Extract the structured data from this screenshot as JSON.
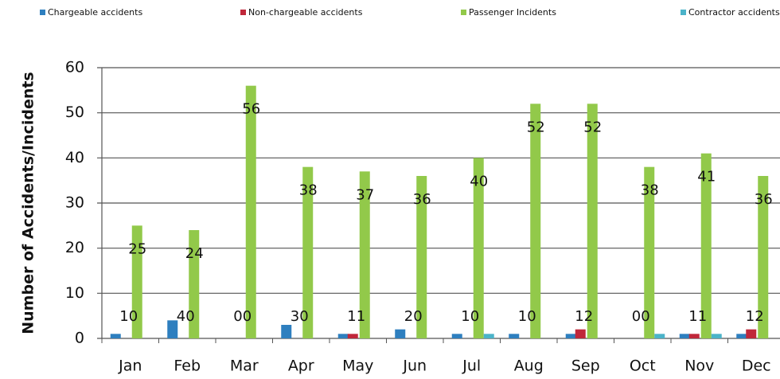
{
  "chart_data": {
    "type": "bar",
    "y_axis_label": "Number of Accidents/Incidents",
    "categories": [
      "Jan",
      "Feb",
      "Mar",
      "Apr",
      "May",
      "Jun",
      "Jul",
      "Aug",
      "Sep",
      "Oct",
      "Nov",
      "Dec"
    ],
    "series": [
      {
        "name": "Chargeable accidents",
        "color": "#2e7fbf",
        "values": [
          1,
          4,
          0,
          3,
          1,
          2,
          1,
          1,
          1,
          0,
          1,
          1
        ]
      },
      {
        "name": "Non-chargeable accidents",
        "color": "#c0273a",
        "values": [
          0,
          0,
          0,
          0,
          1,
          0,
          0,
          0,
          2,
          0,
          1,
          2
        ]
      },
      {
        "name": "Passenger Incidents",
        "color": "#92c94a",
        "values": [
          25,
          24,
          56,
          38,
          37,
          36,
          40,
          52,
          52,
          38,
          41,
          36
        ]
      },
      {
        "name": "Contractor accidents",
        "color": "#4bb3c9",
        "values": [
          0,
          0,
          0,
          0,
          0,
          0,
          1,
          0,
          0,
          1,
          1,
          0
        ]
      }
    ],
    "ylim": [
      0,
      60
    ],
    "yticks": [
      0,
      10,
      20,
      30,
      40,
      50,
      60
    ],
    "grid": true,
    "legend": "top"
  }
}
